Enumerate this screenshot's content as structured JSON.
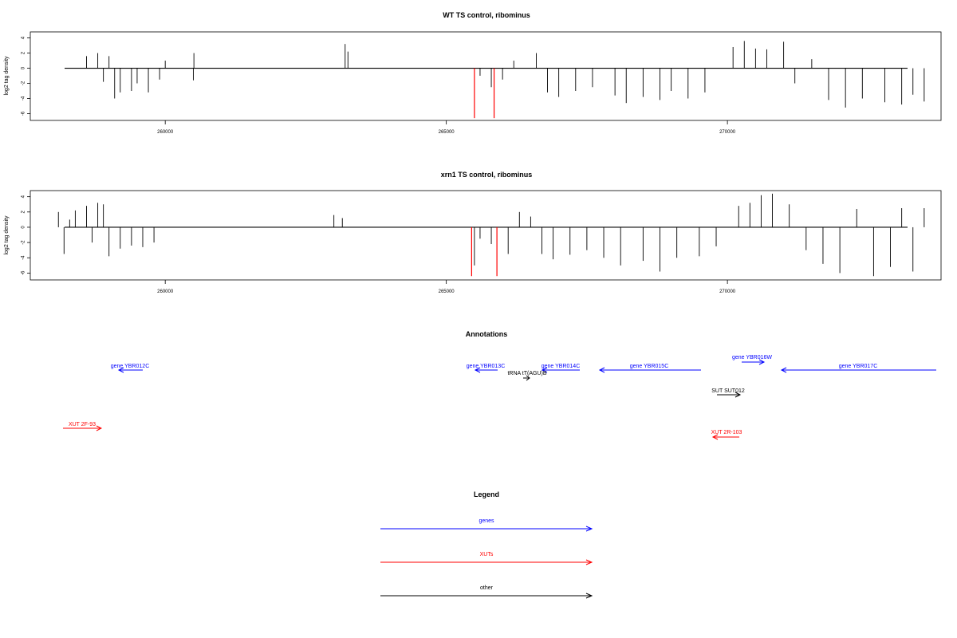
{
  "chart_data": [
    {
      "type": "bar",
      "title": "WT TS control, ribominus",
      "ylabel": "log2 tag density",
      "xticks": [
        260000,
        265000,
        270000
      ],
      "yticks": [
        -6,
        -4,
        -2,
        0,
        2,
        4
      ],
      "xlim": [
        257600,
        273800
      ],
      "ylim": [
        -6.9,
        4.8
      ],
      "segments": [
        {
          "x": 258200,
          "y": 0
        },
        {
          "x": 258600,
          "y": 1.6
        },
        {
          "x": 258800,
          "y": 2.0
        },
        {
          "x": 258900,
          "y": -1.8
        },
        {
          "x": 259000,
          "y": 1.6
        },
        {
          "x": 259100,
          "y": -4.0
        },
        {
          "x": 259200,
          "y": -3.2
        },
        {
          "x": 259400,
          "y": -3.0
        },
        {
          "x": 259500,
          "y": -2.0
        },
        {
          "x": 259700,
          "y": -3.2
        },
        {
          "x": 259900,
          "y": -1.5
        },
        {
          "x": 260000,
          "y": 1.0
        },
        {
          "x": 260500,
          "y": -1.6
        },
        {
          "x": 260510,
          "y": 2.0
        },
        {
          "x": 263200,
          "y": 3.2
        },
        {
          "x": 263250,
          "y": 2.2
        },
        {
          "x": 265500,
          "y": -6.6
        },
        {
          "x": 265600,
          "y": -1.0
        },
        {
          "x": 265800,
          "y": -2.5
        },
        {
          "x": 265850,
          "y": -6.6
        },
        {
          "x": 266000,
          "y": -1.5
        },
        {
          "x": 266200,
          "y": 1.0
        },
        {
          "x": 266600,
          "y": 2.0
        },
        {
          "x": 266800,
          "y": -3.2
        },
        {
          "x": 267000,
          "y": -3.8
        },
        {
          "x": 267300,
          "y": -3.0
        },
        {
          "x": 267600,
          "y": -2.5
        },
        {
          "x": 268000,
          "y": -3.6
        },
        {
          "x": 268200,
          "y": -4.6
        },
        {
          "x": 268500,
          "y": -3.8
        },
        {
          "x": 268800,
          "y": -4.2
        },
        {
          "x": 269000,
          "y": -3.0
        },
        {
          "x": 269300,
          "y": -4.0
        },
        {
          "x": 269600,
          "y": -3.2
        },
        {
          "x": 270100,
          "y": 2.8
        },
        {
          "x": 270300,
          "y": 3.6
        },
        {
          "x": 270500,
          "y": 2.6
        },
        {
          "x": 270700,
          "y": 2.5
        },
        {
          "x": 271000,
          "y": 3.5
        },
        {
          "x": 271200,
          "y": -2.0
        },
        {
          "x": 271500,
          "y": 1.2
        },
        {
          "x": 271800,
          "y": -4.2
        },
        {
          "x": 272100,
          "y": -5.2
        },
        {
          "x": 272400,
          "y": -4.0
        },
        {
          "x": 272800,
          "y": -4.5
        },
        {
          "x": 273100,
          "y": -4.8
        },
        {
          "x": 273300,
          "y": -3.5
        },
        {
          "x": 273500,
          "y": -4.4
        }
      ],
      "highlight": [
        {
          "x": 265500,
          "y": -6.6
        },
        {
          "x": 265850,
          "y": -6.6
        }
      ]
    },
    {
      "type": "bar",
      "title": "xrn1 TS control, ribominus",
      "ylabel": "log2 tag density",
      "xticks": [
        260000,
        265000,
        270000
      ],
      "yticks": [
        -6,
        -4,
        -2,
        0,
        2,
        4
      ],
      "xlim": [
        257600,
        273800
      ],
      "ylim": [
        -6.9,
        4.8
      ],
      "segments": [
        {
          "x": 258100,
          "y": 2.0
        },
        {
          "x": 258200,
          "y": -3.5
        },
        {
          "x": 258300,
          "y": 1.0
        },
        {
          "x": 258400,
          "y": 2.2
        },
        {
          "x": 258600,
          "y": 2.8
        },
        {
          "x": 258700,
          "y": -2.0
        },
        {
          "x": 258800,
          "y": 3.2
        },
        {
          "x": 258900,
          "y": 3.0
        },
        {
          "x": 259000,
          "y": -3.8
        },
        {
          "x": 259200,
          "y": -2.8
        },
        {
          "x": 259400,
          "y": -2.4
        },
        {
          "x": 259600,
          "y": -2.6
        },
        {
          "x": 259800,
          "y": -2.0
        },
        {
          "x": 263000,
          "y": 1.6
        },
        {
          "x": 263150,
          "y": 1.2
        },
        {
          "x": 265450,
          "y": -6.4
        },
        {
          "x": 265500,
          "y": -5.0
        },
        {
          "x": 265600,
          "y": -1.5
        },
        {
          "x": 265800,
          "y": -2.2
        },
        {
          "x": 265900,
          "y": -6.4
        },
        {
          "x": 266100,
          "y": -3.5
        },
        {
          "x": 266300,
          "y": 2.0
        },
        {
          "x": 266500,
          "y": 1.4
        },
        {
          "x": 266700,
          "y": -3.5
        },
        {
          "x": 266900,
          "y": -4.2
        },
        {
          "x": 267200,
          "y": -3.6
        },
        {
          "x": 267500,
          "y": -3.0
        },
        {
          "x": 267800,
          "y": -4.0
        },
        {
          "x": 268100,
          "y": -5.0
        },
        {
          "x": 268500,
          "y": -4.4
        },
        {
          "x": 268800,
          "y": -5.8
        },
        {
          "x": 269100,
          "y": -4.0
        },
        {
          "x": 269500,
          "y": -3.8
        },
        {
          "x": 269800,
          "y": -2.5
        },
        {
          "x": 270200,
          "y": 2.8
        },
        {
          "x": 270400,
          "y": 3.2
        },
        {
          "x": 270600,
          "y": 4.2
        },
        {
          "x": 270800,
          "y": 4.4
        },
        {
          "x": 271100,
          "y": 3.0
        },
        {
          "x": 271400,
          "y": -3.0
        },
        {
          "x": 271700,
          "y": -4.8
        },
        {
          "x": 272000,
          "y": -6.0
        },
        {
          "x": 272300,
          "y": 2.4
        },
        {
          "x": 272600,
          "y": -6.4
        },
        {
          "x": 272900,
          "y": -5.2
        },
        {
          "x": 273100,
          "y": 2.5
        },
        {
          "x": 273300,
          "y": -5.8
        },
        {
          "x": 273500,
          "y": 2.5
        }
      ],
      "highlight": [
        {
          "x": 265450,
          "y": -6.4
        },
        {
          "x": 265900,
          "y": -6.4
        }
      ]
    }
  ],
  "annotations": {
    "title": "Annotations",
    "features": [
      {
        "label": "gene YBR012C",
        "kind": "gene",
        "dir": "left"
      },
      {
        "label": "gene YBR013C",
        "kind": "gene",
        "dir": "left"
      },
      {
        "label": "gene YBR014C",
        "kind": "gene",
        "dir": "left"
      },
      {
        "label": "gene YBR015C",
        "kind": "gene",
        "dir": "left"
      },
      {
        "label": "gene YBR016W",
        "kind": "gene",
        "dir": "right"
      },
      {
        "label": "gene YBR017C",
        "kind": "gene",
        "dir": "left"
      },
      {
        "label": "tRNA tT(AGU)B",
        "kind": "other",
        "dir": "right"
      },
      {
        "label": "SUT SUT012",
        "kind": "other",
        "dir": "right"
      },
      {
        "label": "XUT 2F-93",
        "kind": "xut",
        "dir": "right"
      },
      {
        "label": "XUT 2R-103",
        "kind": "xut",
        "dir": "left"
      }
    ]
  },
  "legend": {
    "title": "Legend",
    "items": [
      {
        "label": "genes",
        "color": "#0000ff"
      },
      {
        "label": "XUTs",
        "color": "#ff0000"
      },
      {
        "label": "other",
        "color": "#000000"
      }
    ]
  },
  "colors": {
    "gene": "#0000ff",
    "xut": "#ff0000",
    "other": "#000000",
    "highlight": "#ff0000"
  }
}
